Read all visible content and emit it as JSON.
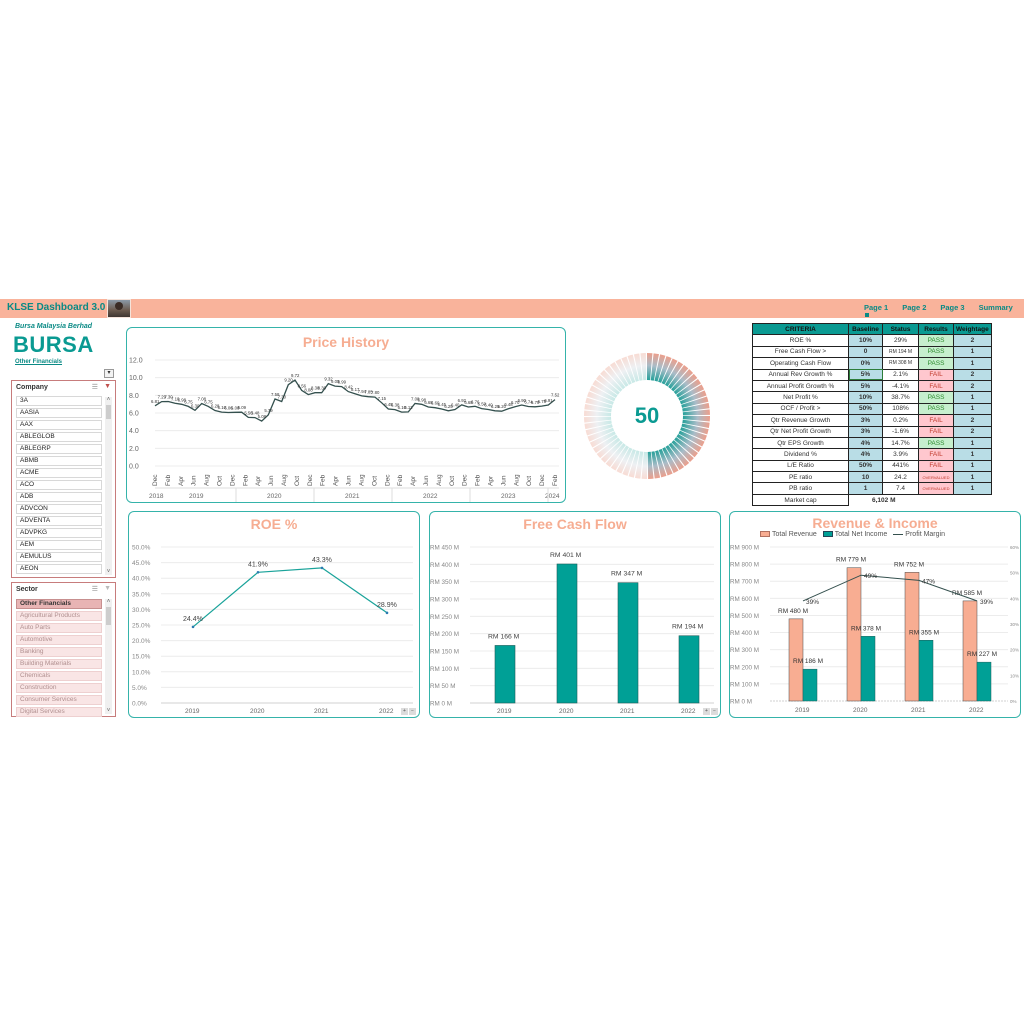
{
  "header": {
    "app_title": "KLSE Dashboard 3.0",
    "nav": [
      "Page 1",
      "Page 2",
      "Page 3",
      "Summary"
    ],
    "active_nav": "Page 1",
    "brand_color": "#0a9a92",
    "bar_color": "#f9b39b"
  },
  "company": {
    "full_name": "Bursa Malaysia Berhad",
    "code": "BURSA",
    "sector": "Other Financials"
  },
  "company_slicer": {
    "title": "Company",
    "items": [
      "3A",
      "AASIA",
      "AAX",
      "ABLEGLOB",
      "ABLEGRP",
      "ABMB",
      "ACME",
      "ACO",
      "ADB",
      "ADVCON",
      "ADVENTA",
      "ADVPKG",
      "AEM",
      "AEMULUS",
      "AEON"
    ]
  },
  "sector_slicer": {
    "title": "Sector",
    "selected": "Other Financials",
    "items": [
      "Other Financials",
      "Agricultural Products",
      "Auto Parts",
      "Automotive",
      "Banking",
      "Building Materials",
      "Chemicals",
      "Construction",
      "Consumer Services",
      "Digital Services"
    ]
  },
  "score": {
    "value": "50"
  },
  "criteria_table": {
    "headers": [
      "CRITERIA",
      "Baseline",
      "Status",
      "Results",
      "Weightage"
    ],
    "rows": [
      {
        "criteria": "ROE %",
        "baseline": "10%",
        "status": "29%",
        "result": "PASS",
        "weight": "2"
      },
      {
        "criteria": "Free Cash Flow >",
        "baseline": "0",
        "status": "RM 194 M",
        "result": "PASS",
        "weight": "1"
      },
      {
        "criteria": "Operating Cash Flow",
        "baseline": "0%",
        "status": "RM 308 M",
        "result": "PASS",
        "weight": "1"
      },
      {
        "criteria": "Annual Rev Growth %",
        "baseline": "5%",
        "status": "2.1%",
        "result": "FAIL",
        "weight": "2"
      },
      {
        "criteria": "Annual Profit Growth %",
        "baseline": "5%",
        "status": "-4.1%",
        "result": "FAIL",
        "weight": "2"
      },
      {
        "criteria": "Net Profit %",
        "baseline": "10%",
        "status": "38.7%",
        "result": "PASS",
        "weight": "1"
      },
      {
        "criteria": "OCF / Profit >",
        "baseline": "50%",
        "status": "108%",
        "result": "PASS",
        "weight": "1"
      },
      {
        "criteria": "Qtr Revenue Growth",
        "baseline": "3%",
        "status": "0.2%",
        "result": "FAIL",
        "weight": "2"
      },
      {
        "criteria": "Qtr Net Profit Growth",
        "baseline": "3%",
        "status": "-1.6%",
        "result": "FAIL",
        "weight": "2"
      },
      {
        "criteria": "Qtr EPS Growth",
        "baseline": "4%",
        "status": "14.7%",
        "result": "PASS",
        "weight": "1"
      },
      {
        "criteria": "Dividend %",
        "baseline": "4%",
        "status": "3.9%",
        "result": "FAIL",
        "weight": "1"
      },
      {
        "criteria": "L/E Ratio",
        "baseline": "50%",
        "status": "441%",
        "result": "FAIL",
        "weight": "1"
      },
      {
        "criteria": "PE ratio",
        "baseline": "10",
        "status": "24.2",
        "result": "OVERVALUED",
        "weight": "1"
      },
      {
        "criteria": "PB ratio",
        "baseline": "1",
        "status": "7.4",
        "result": "OVERVALUED",
        "weight": "1"
      }
    ],
    "market_cap_label": "Market cap",
    "market_cap_value": "6,102 M"
  },
  "chart_data": [
    {
      "type": "line",
      "title": "Price History",
      "ylim": [
        0,
        12
      ],
      "yticks": [
        "0.0",
        "2.0",
        "4.0",
        "6.0",
        "8.0",
        "10.0",
        "12.0"
      ],
      "month_ticks": [
        "Dec",
        "Feb",
        "Apr",
        "Jun",
        "Aug",
        "Oct",
        "Dec",
        "Feb",
        "Apr",
        "Jun",
        "Aug",
        "Oct",
        "Dec",
        "Feb",
        "Apr",
        "Jun",
        "Aug",
        "Oct",
        "Dec",
        "Feb",
        "Apr",
        "Jun",
        "Aug",
        "Oct",
        "Dec",
        "Feb",
        "Apr",
        "Jun",
        "Aug",
        "Oct",
        "Dec",
        "Feb"
      ],
      "year_ticks": [
        "2018",
        "2019",
        "2020",
        "2021",
        "2022",
        "2023",
        "2024"
      ],
      "values": [
        6.81,
        7.29,
        7.3,
        7.1,
        6.98,
        6.75,
        6.3,
        7.08,
        6.75,
        6.28,
        6.1,
        6.06,
        6.08,
        6.09,
        5.5,
        5.48,
        5.08,
        5.79,
        7.58,
        7.3,
        9.2,
        9.72,
        8.56,
        8.08,
        8.3,
        8.3,
        9.32,
        9.05,
        8.99,
        8.42,
        8.17,
        7.94,
        7.85,
        7.8,
        7.15,
        6.45,
        6.38,
        6.1,
        6.12,
        7.08,
        6.98,
        6.68,
        6.6,
        6.45,
        6.25,
        6.4,
        6.92,
        6.68,
        6.76,
        6.5,
        6.4,
        6.25,
        6.2,
        6.48,
        6.7,
        6.9,
        6.74,
        6.7,
        6.78,
        6.91,
        7.52
      ],
      "last_value_label": "7.52",
      "line_color": "#34504e",
      "grid": true
    },
    {
      "type": "line",
      "title": "ROE %",
      "categories": [
        "2019",
        "2020",
        "2021",
        "2022"
      ],
      "values": [
        24.4,
        41.9,
        43.3,
        28.9
      ],
      "labels": [
        "24.4%",
        "41.9%",
        "43.3%",
        "28.9%"
      ],
      "yticks": [
        "0.0%",
        "5.0%",
        "10.0%",
        "15.0%",
        "20.0%",
        "25.0%",
        "30.0%",
        "35.0%",
        "40.0%",
        "45.0%",
        "50.0%"
      ],
      "ylim": [
        0,
        50
      ],
      "line_color": "#1aa39a"
    },
    {
      "type": "bar",
      "title": "Free Cash Flow",
      "categories": [
        "2019",
        "2020",
        "2021",
        "2022"
      ],
      "values": [
        166,
        401,
        347,
        194
      ],
      "labels": [
        "RM 166 M",
        "RM 401 M",
        "RM 347 M",
        "RM 194 M"
      ],
      "yticks": [
        "RM 0 M",
        "RM 50 M",
        "RM 100 M",
        "RM 150 M",
        "RM 200 M",
        "RM 250 M",
        "RM 300 M",
        "RM 350 M",
        "RM 400 M",
        "RM 450 M"
      ],
      "ylim": [
        0,
        450
      ],
      "bar_color": "#00a096"
    },
    {
      "type": "bar",
      "title": "Revenue & Income",
      "categories": [
        "2019",
        "2020",
        "2021",
        "2022"
      ],
      "legend": [
        "Total Revenue",
        "Total Net Income",
        "Profit Margin"
      ],
      "series": [
        {
          "name": "Total Revenue",
          "values": [
            480,
            779,
            752,
            585
          ],
          "labels": [
            "RM 480 M",
            "RM 779 M",
            "RM 752 M",
            "RM 585 M"
          ],
          "color": "#f8ad92"
        },
        {
          "name": "Total Net Income",
          "values": [
            186,
            378,
            355,
            227
          ],
          "labels": [
            "RM 186 M",
            "RM 378 M",
            "RM 355 M",
            "RM 227 M"
          ],
          "color": "#00a096"
        },
        {
          "name": "Profit Margin",
          "values": [
            39,
            49,
            47,
            39
          ],
          "labels": [
            "39%",
            "49%",
            "47%",
            "39%"
          ],
          "axis": "secondary",
          "color": "#34504e"
        }
      ],
      "yticks": [
        "RM 0 M",
        "RM 100 M",
        "RM 200 M",
        "RM 300 M",
        "RM 400 M",
        "RM 500 M",
        "RM 600 M",
        "RM 700 M",
        "RM 800 M",
        "RM 900 M"
      ],
      "ylim": [
        0,
        900
      ],
      "y2ticks": [
        "0%",
        "10%",
        "20%",
        "30%",
        "40%",
        "50%",
        "60%"
      ],
      "y2lim": [
        0,
        60
      ]
    }
  ]
}
